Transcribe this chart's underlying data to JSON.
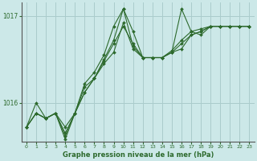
{
  "bg_color": "#cce8e8",
  "grid_color": "#aacccc",
  "line_color": "#2d6a2d",
  "marker_color": "#2d6a2d",
  "text_color": "#2d6a2d",
  "xlabel": "Graphe pression niveau de la mer (hPa)",
  "ylim": [
    1015.55,
    1017.15
  ],
  "xlim": [
    -0.5,
    23.5
  ],
  "yticks": [
    1016,
    1017
  ],
  "xticks": [
    0,
    1,
    2,
    3,
    4,
    5,
    6,
    7,
    8,
    9,
    10,
    11,
    12,
    13,
    14,
    15,
    16,
    17,
    18,
    19,
    20,
    21,
    22,
    23
  ],
  "series": [
    [
      1015.72,
      1016.0,
      1015.82,
      1015.88,
      1015.72,
      1015.88,
      1016.12,
      1016.28,
      1016.45,
      1016.58,
      1016.92,
      1016.62,
      1016.52,
      1016.52,
      1016.52,
      1016.58,
      1016.62,
      1016.78,
      1016.82,
      1016.88,
      1016.88,
      1016.88,
      1016.88,
      1016.88
    ],
    [
      1015.72,
      1015.88,
      1015.82,
      1015.88,
      1015.58,
      1015.88,
      1016.18,
      1016.28,
      1016.5,
      1016.72,
      1017.08,
      1016.65,
      1016.52,
      1016.52,
      1016.52,
      1016.58,
      1016.68,
      1016.78,
      1016.82,
      1016.88,
      1016.88,
      1016.88,
      1016.88,
      1016.88
    ],
    [
      1015.72,
      1015.88,
      1015.82,
      1015.88,
      1015.65,
      1015.88,
      1016.22,
      1016.35,
      1016.55,
      1016.88,
      1017.08,
      1016.82,
      1016.52,
      1016.52,
      1016.52,
      1016.6,
      1016.72,
      1016.82,
      1016.85,
      1016.88,
      1016.88,
      1016.88,
      1016.88,
      1016.88
    ],
    [
      1015.72,
      1015.88,
      1015.82,
      1015.88,
      1015.62,
      1015.88,
      1016.12,
      1016.28,
      1016.48,
      1016.68,
      1016.88,
      1016.68,
      1016.52,
      1016.52,
      1016.52,
      1016.58,
      1017.08,
      1016.82,
      1016.78,
      1016.88,
      1016.88,
      1016.88,
      1016.88,
      1016.88
    ]
  ]
}
